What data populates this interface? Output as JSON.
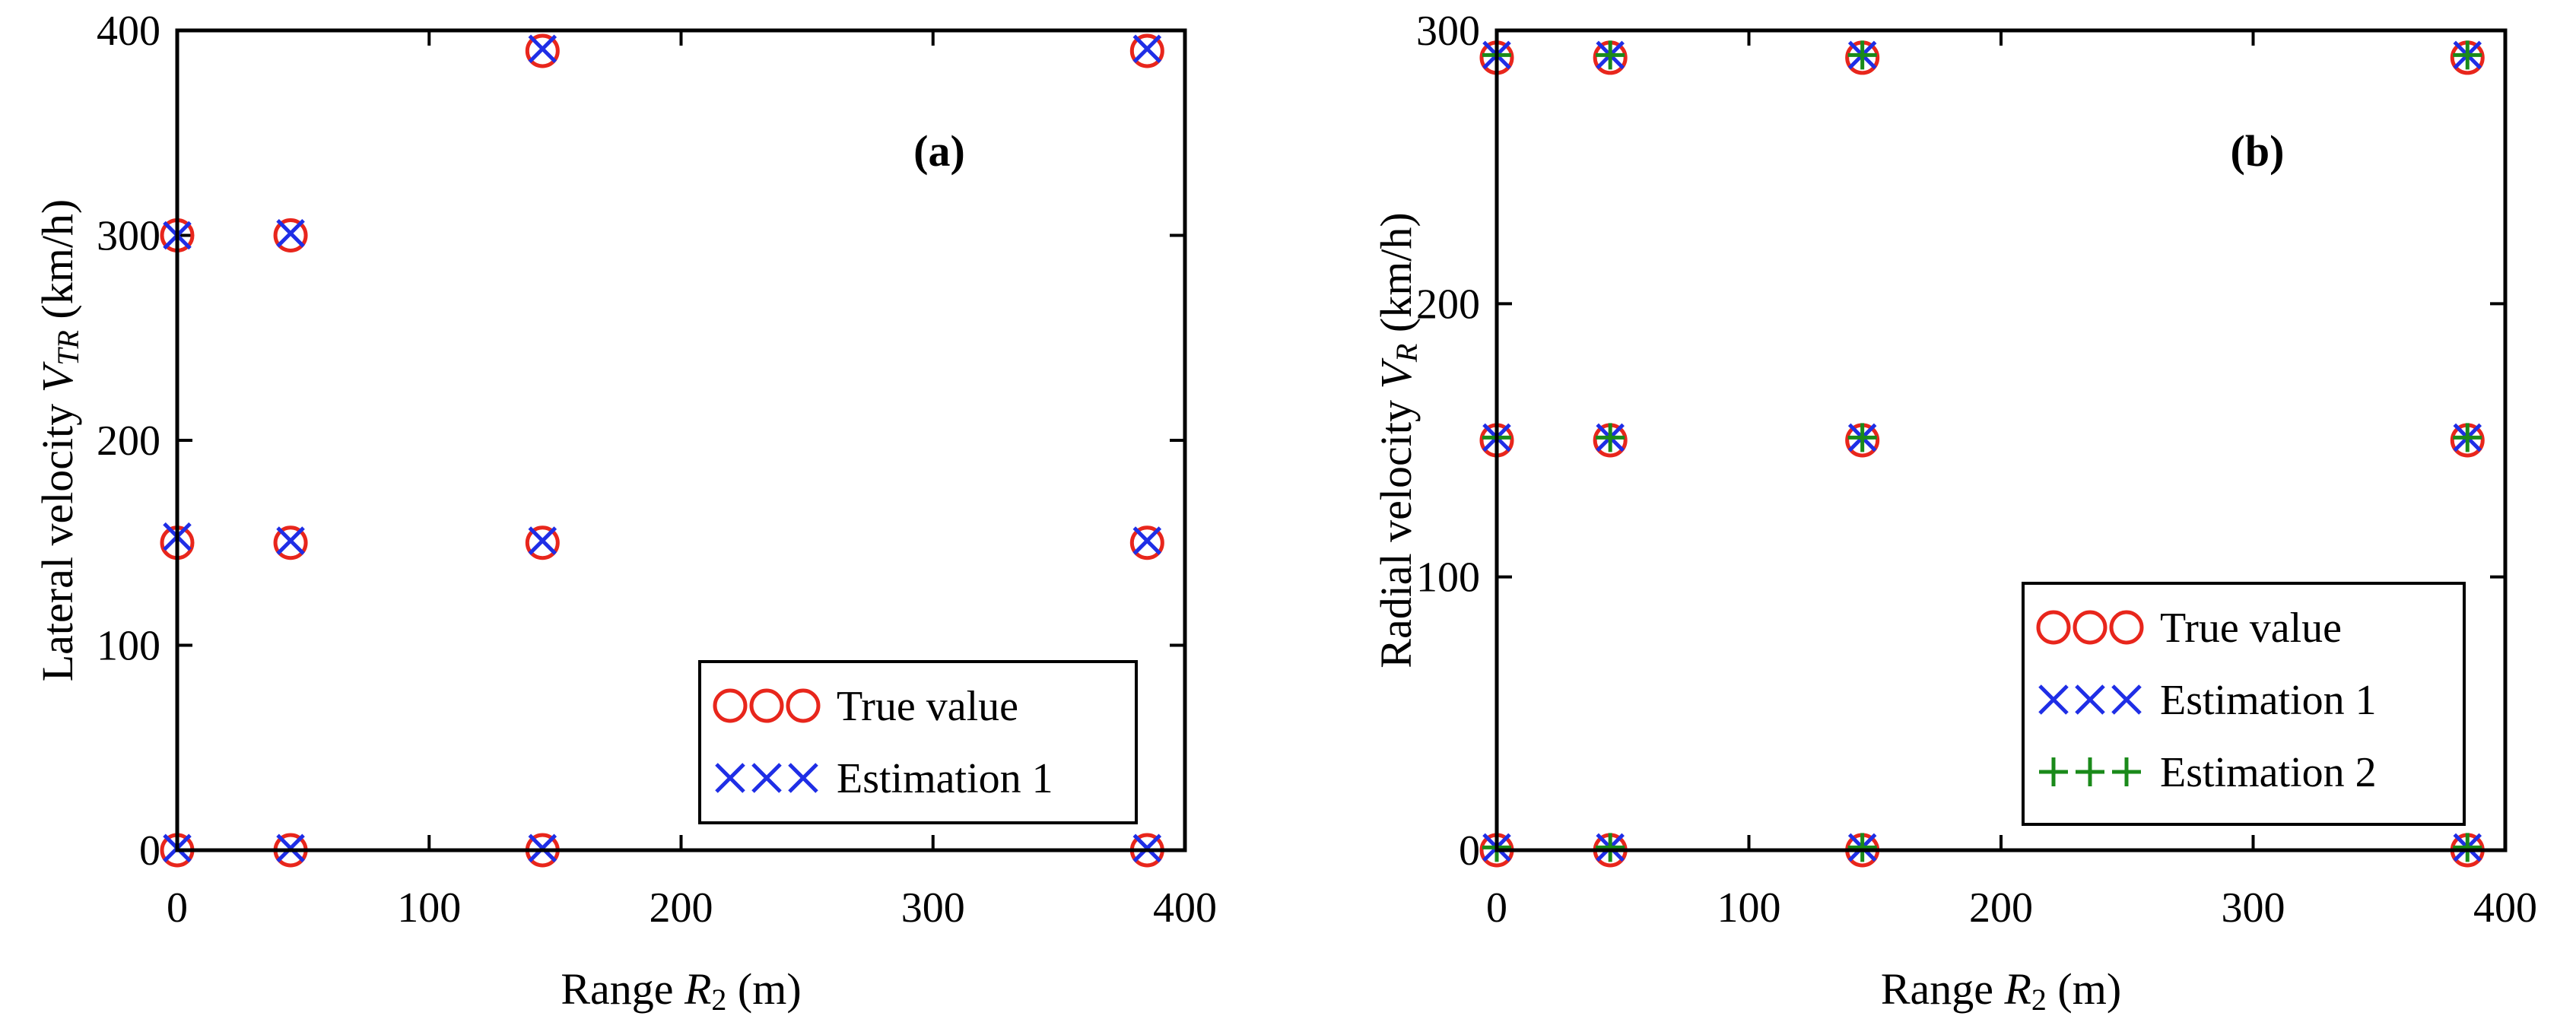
{
  "chart_data": [
    {
      "type": "scatter",
      "panel": "(a)",
      "xlabel_prefix": "Range ",
      "xlabel_var": "R",
      "xlabel_sub": "2",
      "xlabel_suffix": " (m)",
      "ylabel_prefix": "Lateral velocity ",
      "ylabel_var": "V",
      "ylabel_sub": "TR",
      "ylabel_suffix": " (km/h)",
      "xlim": [
        0,
        400
      ],
      "ylim": [
        0,
        400
      ],
      "xticks": [
        0,
        100,
        200,
        300,
        400
      ],
      "yticks": [
        0,
        100,
        200,
        300,
        400
      ],
      "xtick_labels": [
        "0",
        "100",
        "200",
        "300",
        "400"
      ],
      "ytick_labels": [
        "0",
        "100",
        "200",
        "300",
        "400"
      ],
      "legend_position": "bottom-right",
      "series": [
        {
          "name": "True value",
          "marker": "circle",
          "color": "#e8261c",
          "points": [
            [
              0,
              0
            ],
            [
              0,
              150
            ],
            [
              0,
              300
            ],
            [
              45,
              0
            ],
            [
              45,
              150
            ],
            [
              45,
              300
            ],
            [
              145,
              0
            ],
            [
              145,
              150
            ],
            [
              145,
              390
            ],
            [
              385,
              0
            ],
            [
              385,
              150
            ],
            [
              385,
              390
            ]
          ]
        },
        {
          "name": "Estimation 1",
          "marker": "x",
          "color": "#1f2ee6",
          "points": [
            [
              0,
              1
            ],
            [
              0,
              153
            ],
            [
              0,
              300
            ],
            [
              45,
              1
            ],
            [
              45,
              151
            ],
            [
              45,
              301
            ],
            [
              145,
              1
            ],
            [
              145,
              151
            ],
            [
              145,
              391
            ],
            [
              385,
              1
            ],
            [
              385,
              151
            ],
            [
              385,
              391
            ]
          ]
        }
      ]
    },
    {
      "type": "scatter",
      "panel": "(b)",
      "xlabel_prefix": "Range ",
      "xlabel_var": "R",
      "xlabel_sub": "2",
      "xlabel_suffix": " (m)",
      "ylabel_prefix": "Radial velocity ",
      "ylabel_var": "V",
      "ylabel_sub": "R",
      "ylabel_suffix": " (km/h)",
      "xlim": [
        0,
        400
      ],
      "ylim": [
        0,
        300
      ],
      "xticks": [
        0,
        100,
        200,
        300,
        400
      ],
      "yticks": [
        0,
        100,
        200,
        300
      ],
      "xtick_labels": [
        "0",
        "100",
        "200",
        "300",
        "400"
      ],
      "ytick_labels": [
        "0",
        "100",
        "200",
        "300"
      ],
      "legend_position": "bottom-right",
      "series": [
        {
          "name": "True value",
          "marker": "circle",
          "color": "#e8261c",
          "points": [
            [
              0,
              0
            ],
            [
              0,
              150
            ],
            [
              0,
              290
            ],
            [
              45,
              0
            ],
            [
              45,
              150
            ],
            [
              45,
              290
            ],
            [
              145,
              0
            ],
            [
              145,
              150
            ],
            [
              145,
              290
            ],
            [
              385,
              0
            ],
            [
              385,
              150
            ],
            [
              385,
              290
            ]
          ]
        },
        {
          "name": "Estimation 1",
          "marker": "x",
          "color": "#1f2ee6",
          "points": [
            [
              0,
              1
            ],
            [
              0,
              151
            ],
            [
              0,
              291
            ],
            [
              45,
              1
            ],
            [
              45,
              151
            ],
            [
              45,
              291
            ],
            [
              145,
              1
            ],
            [
              145,
              151
            ],
            [
              145,
              291
            ],
            [
              385,
              1
            ],
            [
              385,
              151
            ],
            [
              385,
              291
            ]
          ]
        },
        {
          "name": "Estimation 2",
          "marker": "plus",
          "color": "#1a8a1a",
          "points": [
            [
              0,
              1
            ],
            [
              0,
              151
            ],
            [
              0,
              291
            ],
            [
              45,
              1
            ],
            [
              45,
              151
            ],
            [
              45,
              291
            ],
            [
              145,
              1
            ],
            [
              145,
              151
            ],
            [
              145,
              291
            ],
            [
              385,
              1
            ],
            [
              385,
              151
            ],
            [
              385,
              291
            ]
          ]
        }
      ]
    }
  ]
}
